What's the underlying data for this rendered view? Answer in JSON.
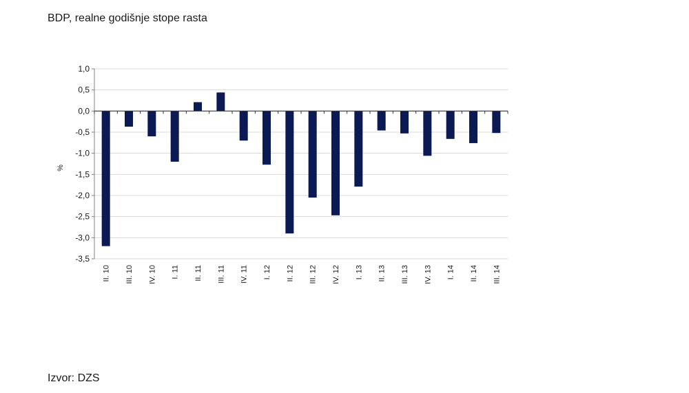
{
  "title": "BDP, realne godišnje stope rasta",
  "source": "Izvor: DZS",
  "chart_data": {
    "type": "bar",
    "ylabel": "%",
    "xlabel": "",
    "ylim": [
      -3.5,
      1.0
    ],
    "yticks": [
      1.0,
      0.5,
      0.0,
      -0.5,
      -1.0,
      -1.5,
      -2.0,
      -2.5,
      -3.0,
      -3.5
    ],
    "ytick_labels": [
      "1,0",
      "0,5",
      "0,0",
      "-0,5",
      "-1,0",
      "-1,5",
      "-2,0",
      "-2,5",
      "-3,0",
      "-3,5"
    ],
    "grid": true,
    "categories": [
      "II. 10",
      "III. 10",
      "IV. 10",
      "I. 11",
      "II. 11",
      "III. 11",
      "IV. 11",
      "I. 12",
      "II. 12",
      "III. 12",
      "IV. 12",
      "I. 13",
      "II. 13",
      "III. 13",
      "IV. 13",
      "I. 14",
      "II. 14",
      "III. 14"
    ],
    "values": [
      -3.2,
      -0.37,
      -0.6,
      -1.2,
      0.21,
      0.44,
      -0.7,
      -1.27,
      -2.9,
      -2.05,
      -2.47,
      -1.79,
      -0.46,
      -0.53,
      -1.06,
      -0.66,
      -0.76,
      -0.52
    ],
    "bar_color": "#0b1a52",
    "grid_color": "#d9d9d9",
    "axis_color": "#808080"
  }
}
